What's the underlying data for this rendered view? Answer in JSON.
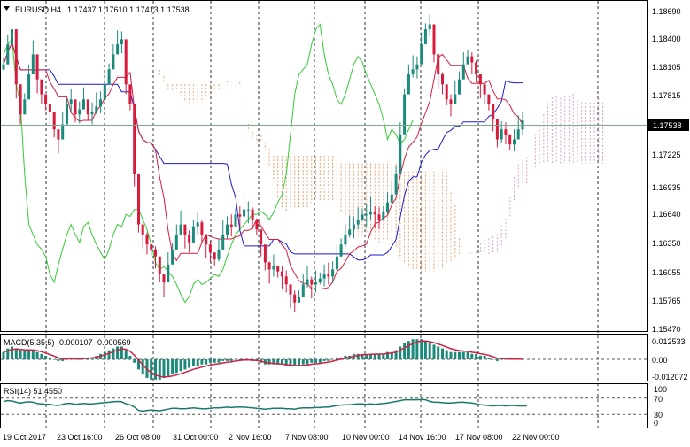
{
  "header": {
    "symbol": "EURUSD,H4",
    "ohlc": "1.17437 1.17610 1.17413 1.17538",
    "menu_icon": "triangle-down-icon"
  },
  "colors": {
    "bull_candle": "#1a8a7a",
    "bear_candle": "#d81a3c",
    "tenkan": "#d81a3c",
    "kijun": "#1a1acc",
    "chikou": "#33cc33",
    "cloud_up": "#d6a0c8",
    "cloud_down": "#e8a070",
    "price_line": "#7aa88a",
    "macd_hist": "#1a8a7a",
    "macd_signal": "#cc2244",
    "rsi": "#1a7a6a",
    "grid": "#000000"
  },
  "price_axis": {
    "ticks": [
      "1.18690",
      "1.18400",
      "1.18105",
      "1.17815",
      "1.17538",
      "1.17225",
      "1.16935",
      "1.16640",
      "1.16350",
      "1.16055",
      "1.15765",
      "1.15470"
    ],
    "current_price": "1.17538",
    "range": [
      1.1547,
      1.1869
    ]
  },
  "time_axis": {
    "labels": [
      "19 Oct 2017",
      "23 Oct 16:00",
      "26 Oct 08:00",
      "31 Oct 00:00",
      "2 Nov 16:00",
      "7 Nov 08:00",
      "10 Nov 00:00",
      "14 Nov 16:00",
      "17 Nov 08:00",
      "22 Nov 00:00"
    ]
  },
  "macd": {
    "label": "MACD(5,35,5) -0.000107 -0.000569",
    "ticks": [
      "0.012533",
      "0.00",
      "-0.012072"
    ]
  },
  "rsi": {
    "label": "RSI(14) 51.4550",
    "ticks": [
      "100",
      "70",
      "30",
      "0"
    ],
    "levels": [
      70,
      30
    ]
  },
  "chart_data": {
    "type": "candlestick",
    "title": "EURUSD,H4",
    "ylim": [
      1.1547,
      1.1869
    ],
    "closes": [
      1.181,
      1.183,
      1.1845,
      1.179,
      1.176,
      1.1775,
      1.18,
      1.182,
      1.1795,
      1.178,
      1.177,
      1.1762,
      1.1745,
      1.1735,
      1.175,
      1.177,
      1.1775,
      1.176,
      1.1765,
      1.1775,
      1.176,
      1.1762,
      1.1768,
      1.1775,
      1.179,
      1.1805,
      1.182,
      1.183,
      1.1835,
      1.179,
      1.177,
      1.17,
      1.165,
      1.164,
      1.163,
      1.1625,
      1.1618,
      1.16,
      1.1592,
      1.161,
      1.1625,
      1.164,
      1.165,
      1.164,
      1.1632,
      1.1648,
      1.1652,
      1.164,
      1.163,
      1.1622,
      1.1615,
      1.1625,
      1.164,
      1.165,
      1.1648,
      1.166,
      1.1658,
      1.1665,
      1.1665,
      1.1655,
      1.1645,
      1.163,
      1.1612,
      1.1605,
      1.1608,
      1.1603,
      1.1598,
      1.159,
      1.158,
      1.1572,
      1.1578,
      1.159,
      1.1595,
      1.159,
      1.1592,
      1.1596,
      1.16,
      1.1598,
      1.1605,
      1.1618,
      1.163,
      1.164,
      1.1645,
      1.165,
      1.1655,
      1.166,
      1.166,
      1.1663,
      1.166,
      1.1655,
      1.1662,
      1.1672,
      1.168,
      1.17,
      1.174,
      1.178,
      1.18,
      1.1805,
      1.181,
      1.183,
      1.1845,
      1.185,
      1.182,
      1.18,
      1.179,
      1.1775,
      1.177,
      1.178,
      1.1795,
      1.181,
      1.1818,
      1.1812,
      1.18,
      1.179,
      1.178,
      1.177,
      1.1755,
      1.1735,
      1.1745,
      1.174,
      1.173,
      1.1735,
      1.1745,
      1.1754
    ],
    "rsi_values": [
      62,
      64,
      63,
      60,
      58,
      60,
      61,
      60,
      57,
      56,
      55,
      55,
      53,
      52,
      55,
      57,
      57,
      55,
      56,
      57,
      56,
      56,
      57,
      58,
      59,
      60,
      61,
      62,
      61,
      56,
      54,
      48,
      40,
      38,
      40,
      41,
      40,
      39,
      41,
      43,
      45,
      45,
      44,
      44,
      45,
      46,
      45,
      44,
      44,
      45,
      46,
      46,
      47,
      48,
      47,
      48,
      48,
      48,
      47,
      46,
      45,
      44,
      43,
      44,
      45,
      45,
      45,
      44,
      44,
      43,
      45,
      46,
      46,
      46,
      47,
      47,
      48,
      48,
      50,
      52,
      53,
      54,
      54,
      55,
      56,
      56,
      55,
      56,
      55,
      56,
      57,
      58,
      60,
      62,
      64,
      66,
      66,
      66,
      66,
      67,
      66,
      62,
      60,
      60,
      59,
      58,
      58,
      59,
      60,
      60,
      59,
      58,
      56,
      54,
      53,
      52,
      51,
      52,
      52,
      51,
      52,
      52,
      51,
      51,
      51
    ],
    "macd_hist": [
      0.004,
      0.006,
      0.007,
      0.006,
      0.005,
      0.005,
      0.005,
      0.005,
      0.004,
      0.003,
      0.002,
      0.001,
      0.0,
      -0.001,
      -0.001,
      0.0,
      0.001,
      0.0,
      0.0,
      0.001,
      0.001,
      0.001,
      0.002,
      0.003,
      0.004,
      0.005,
      0.006,
      0.007,
      0.007,
      0.005,
      0.002,
      -0.002,
      -0.006,
      -0.009,
      -0.011,
      -0.012,
      -0.012,
      -0.012,
      -0.011,
      -0.01,
      -0.009,
      -0.008,
      -0.007,
      -0.006,
      -0.005,
      -0.004,
      -0.004,
      -0.003,
      -0.003,
      -0.002,
      -0.002,
      -0.002,
      -0.001,
      -0.001,
      -0.001,
      0.0,
      0.0,
      0.0,
      0.0,
      -0.001,
      -0.001,
      -0.002,
      -0.003,
      -0.003,
      -0.003,
      -0.003,
      -0.003,
      -0.004,
      -0.004,
      -0.004,
      -0.004,
      -0.003,
      -0.003,
      -0.002,
      -0.002,
      -0.002,
      -0.001,
      -0.001,
      0.0,
      0.001,
      0.001,
      0.002,
      0.002,
      0.003,
      0.003,
      0.003,
      0.003,
      0.003,
      0.003,
      0.003,
      0.003,
      0.004,
      0.004,
      0.005,
      0.007,
      0.009,
      0.01,
      0.011,
      0.011,
      0.011,
      0.01,
      0.009,
      0.008,
      0.007,
      0.006,
      0.005,
      0.004,
      0.004,
      0.004,
      0.004,
      0.004,
      0.003,
      0.003,
      0.002,
      0.002,
      0.001,
      0.0,
      -0.001,
      0.0,
      0.0,
      0.0,
      0.0,
      0.0,
      0.0
    ]
  }
}
